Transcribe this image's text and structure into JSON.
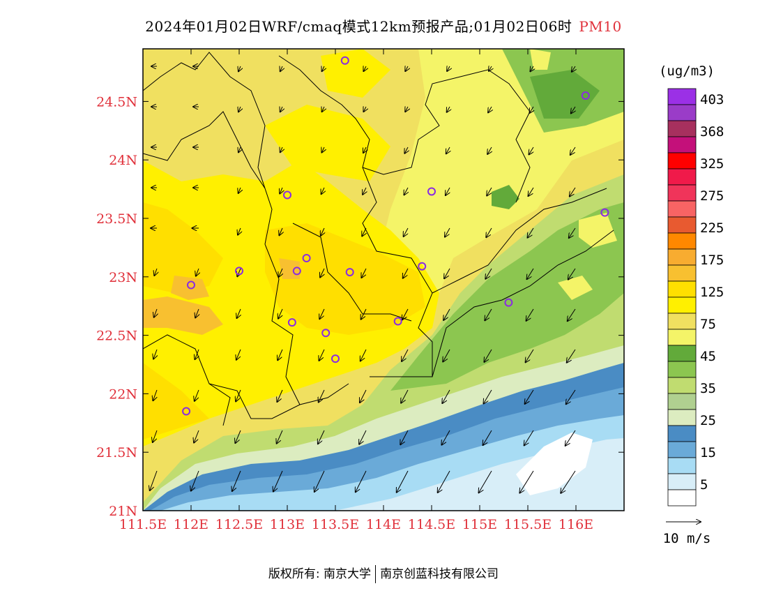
{
  "header": {
    "title": "2024年01月02日WRF/cmaq模式12km预报产品;01月02日06时",
    "pollutant": "PM10"
  },
  "map": {
    "lon_ticks": [
      "111.5E",
      "112E",
      "112.5E",
      "113E",
      "113.5E",
      "114E",
      "114.5E",
      "115E",
      "115.5E",
      "116E"
    ],
    "lat_ticks": [
      "21N",
      "21.5N",
      "22N",
      "22.5N",
      "23N",
      "23.5N",
      "24N",
      "24.5N"
    ],
    "lon_range": [
      111.5,
      116.5
    ],
    "lat_range": [
      21.0,
      24.95
    ],
    "station_marker_color": "#8a2be2",
    "stations": [
      {
        "lon": 113.6,
        "lat": 24.85
      },
      {
        "lon": 116.1,
        "lat": 24.55
      },
      {
        "lon": 113.0,
        "lat": 23.7
      },
      {
        "lon": 114.5,
        "lat": 23.73
      },
      {
        "lon": 116.3,
        "lat": 23.55
      },
      {
        "lon": 112.0,
        "lat": 22.93
      },
      {
        "lon": 112.5,
        "lat": 23.05
      },
      {
        "lon": 113.1,
        "lat": 23.05
      },
      {
        "lon": 113.2,
        "lat": 23.16
      },
      {
        "lon": 113.65,
        "lat": 23.04
      },
      {
        "lon": 114.4,
        "lat": 23.09
      },
      {
        "lon": 115.3,
        "lat": 22.78
      },
      {
        "lon": 113.05,
        "lat": 22.61
      },
      {
        "lon": 113.4,
        "lat": 22.52
      },
      {
        "lon": 114.15,
        "lat": 22.62
      },
      {
        "lon": 113.5,
        "lat": 22.3
      },
      {
        "lon": 111.95,
        "lat": 21.85
      }
    ]
  },
  "legend": {
    "unit": "(ug/m3)",
    "levels": [
      {
        "color": "#9b30e6",
        "label": "403"
      },
      {
        "color": "#9a3cc8",
        "label": ""
      },
      {
        "color": "#a7305e",
        "label": "368"
      },
      {
        "color": "#c4107a",
        "label": ""
      },
      {
        "color": "#ff0000",
        "label": "325"
      },
      {
        "color": "#f01a4a",
        "label": ""
      },
      {
        "color": "#f0345a",
        "label": "275"
      },
      {
        "color": "#f86464",
        "label": ""
      },
      {
        "color": "#e85a30",
        "label": "225"
      },
      {
        "color": "#ff8800",
        "label": ""
      },
      {
        "color": "#f8ac30",
        "label": "175"
      },
      {
        "color": "#f8c030",
        "label": ""
      },
      {
        "color": "#ffdf00",
        "label": "125"
      },
      {
        "color": "#fff000",
        "label": ""
      },
      {
        "color": "#f0e060",
        "label": "75"
      },
      {
        "color": "#f4f468",
        "label": ""
      },
      {
        "color": "#62aa3a",
        "label": "45"
      },
      {
        "color": "#8cc650",
        "label": ""
      },
      {
        "color": "#c0dc70",
        "label": "35"
      },
      {
        "color": "#b0d090",
        "label": ""
      },
      {
        "color": "#dcecc0",
        "label": "25"
      },
      {
        "color": "#4a8cc4",
        "label": ""
      },
      {
        "color": "#6aaad8",
        "label": "15"
      },
      {
        "color": "#a8dcf4",
        "label": ""
      },
      {
        "color": "#d8eef8",
        "label": "5"
      },
      {
        "color": "#ffffff",
        "label": ""
      }
    ],
    "wind_scale_label": "10 m/s"
  },
  "footer": {
    "copyright": "版权所有: 南京大学",
    "company": "南京创蓝科技有限公司"
  }
}
